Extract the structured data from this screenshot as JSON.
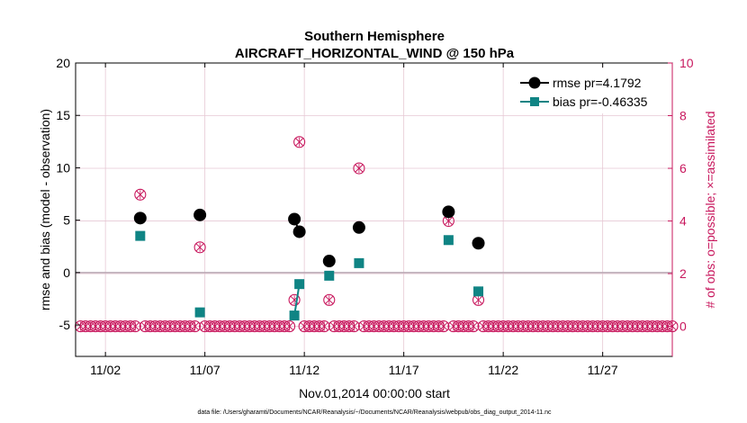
{
  "chart_data": {
    "type": "scatter",
    "title": "Southern Hemisphere",
    "subtitle": "AIRCRAFT_HORIZONTAL_WIND @ 150 hPa",
    "xlabel": "Nov.01,2014 00:00:00 start",
    "ylabel": "rmse and bias (model - observation)",
    "y2label": "# of obs: o=possible; ×=assimilated",
    "footnote": "data file: /Users/gharamti/Documents/NCAR/Reanalysis/~/Documents/NCAR/Reanalysis/webpub/obs_diag_output_2014-11.nc",
    "xlim": [
      0,
      30
    ],
    "ylim": [
      -8,
      20
    ],
    "y2lim": [
      -1.1429,
      10
    ],
    "x_ticks": [
      {
        "v": 1.5,
        "label": "11/02"
      },
      {
        "v": 6.5,
        "label": "11/07"
      },
      {
        "v": 11.5,
        "label": "11/12"
      },
      {
        "v": 16.5,
        "label": "11/17"
      },
      {
        "v": 21.5,
        "label": "11/22"
      },
      {
        "v": 26.5,
        "label": "11/27"
      }
    ],
    "y_ticks": [
      -5,
      0,
      5,
      10,
      15,
      20
    ],
    "y2_ticks": [
      0,
      2,
      4,
      6,
      8,
      10
    ],
    "zero_line": 0,
    "grid": true,
    "legend_position": "top-right",
    "colors": {
      "rmse": "#000000",
      "bias": "#0f8484",
      "obs": "#c8175d",
      "grid": "#e6c8d4"
    },
    "series": [
      {
        "name": "rmse pr=4.1792",
        "marker": "circle",
        "connect": true,
        "points": [
          [
            3.25,
            5.2
          ],
          [
            6.25,
            5.5
          ],
          [
            11.0,
            5.1
          ],
          [
            11.25,
            3.9
          ],
          [
            12.75,
            1.1
          ],
          [
            14.25,
            4.3
          ],
          [
            18.75,
            5.8
          ],
          [
            20.25,
            2.8
          ]
        ]
      },
      {
        "name": "bias pr=-0.46335",
        "marker": "square",
        "connect": true,
        "points": [
          [
            3.25,
            3.5
          ],
          [
            6.25,
            -3.8
          ],
          [
            11.0,
            -4.1
          ],
          [
            11.25,
            -1.1
          ],
          [
            12.75,
            -0.3
          ],
          [
            14.25,
            0.9
          ],
          [
            18.75,
            3.1
          ],
          [
            20.25,
            -1.8
          ]
        ]
      }
    ],
    "obs_counts": {
      "x_start": 0.25,
      "x_step": 0.25,
      "n": 120,
      "default": 0,
      "nonzero": [
        [
          3.25,
          5
        ],
        [
          6.25,
          3
        ],
        [
          11.0,
          1
        ],
        [
          11.25,
          7
        ],
        [
          12.75,
          1
        ],
        [
          14.25,
          6
        ],
        [
          18.75,
          4
        ],
        [
          20.25,
          1
        ]
      ]
    }
  }
}
